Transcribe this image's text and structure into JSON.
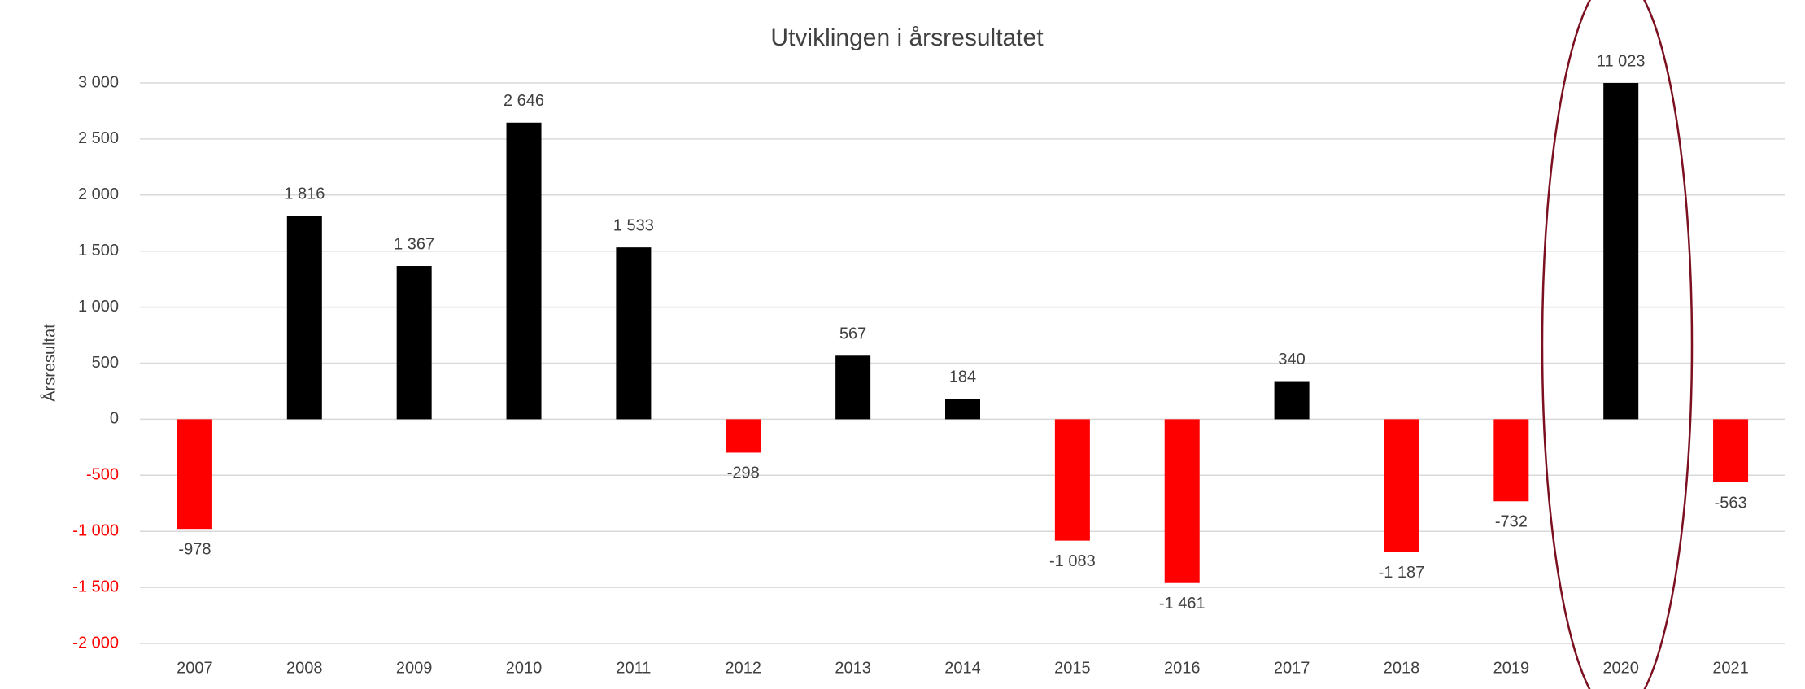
{
  "chart_data": {
    "type": "bar",
    "title": "Utviklingen i årsresultatet",
    "y_label": "Årsresultat",
    "categories": [
      "2007",
      "2008",
      "2009",
      "2010",
      "2011",
      "2012",
      "2013",
      "2014",
      "2015",
      "2016",
      "2017",
      "2018",
      "2019",
      "2020",
      "2021"
    ],
    "values": [
      -978,
      1816,
      1367,
      2646,
      1533,
      -298,
      567,
      184,
      -1083,
      -1461,
      340,
      -1187,
      -732,
      11023,
      -563
    ],
    "value_labels": [
      "-978",
      "1 816",
      "1 367",
      "2 646",
      "1 533",
      "-298",
      "567",
      "184",
      "-1 083",
      "-1 461",
      "340",
      "-1 187",
      "-732",
      "11 023",
      "-563"
    ],
    "color": "#000000",
    "negative_color": "#ff0000",
    "ylim": [
      -2000,
      3000
    ],
    "yticks": [
      {
        "value": -2000,
        "label": "-2 000"
      },
      {
        "value": -1500,
        "label": "-1 500"
      },
      {
        "value": -1000,
        "label": "-1 000"
      },
      -500,
      0,
      500,
      {
        "value": 1000,
        "label": "1 000"
      },
      {
        "value": 1500,
        "label": "1 500"
      },
      {
        "value": 2000,
        "label": "2 000"
      },
      {
        "value": 2500,
        "label": "2 500"
      },
      {
        "value": 3000,
        "label": "3 000"
      }
    ],
    "grid": true
  }
}
